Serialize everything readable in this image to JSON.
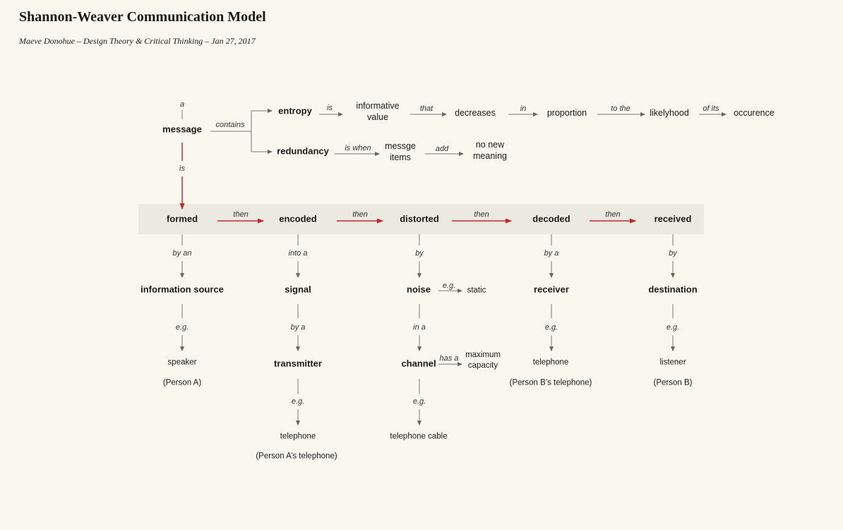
{
  "header": {
    "title": "Shannon-Weaver Communication Model",
    "subtitle": "Maeve Donohue – Design Theory & Critical Thinking – Jan 27, 2017"
  },
  "top": {
    "a": "a",
    "message": "message",
    "contains": "contains",
    "is": "is",
    "entropy": "entropy",
    "entropy_is": "is",
    "informative_value": "informative\nvalue",
    "that": "that",
    "decreases": "decreases",
    "in": "in",
    "proportion": "proportion",
    "to_the": "to the",
    "likelyhood": "likelyhood",
    "of_its": "of its",
    "occurence": "occurence",
    "redundancy": "redundancy",
    "is_when": "is when",
    "messge_items": "messge\nitems",
    "add": "add",
    "no_new_meaning": "no new\nmeaning"
  },
  "process": {
    "stages": [
      "formed",
      "encoded",
      "distorted",
      "decoded",
      "received"
    ],
    "then": "then"
  },
  "columns": {
    "formed": {
      "rel1": "by an",
      "node": "information source",
      "rel2": "e.g.",
      "ex1": "speaker",
      "ex2": "(Person A)"
    },
    "encoded": {
      "rel1": "into a",
      "node": "signal",
      "rel2": "by a",
      "node2": "transmitter",
      "rel3": "e.g.",
      "ex1": "telephone",
      "ex2": "(Person A’s telephone)"
    },
    "distorted": {
      "rel1": "by",
      "node": "noise",
      "eg": "e.g.",
      "static": "static",
      "rel2": "in a",
      "node2": "channel",
      "has_a": "has a",
      "max_capacity": "maximum\ncapacity",
      "rel3": "e.g.",
      "ex1": "telephone cable"
    },
    "decoded": {
      "rel1": "by a",
      "node": "receiver",
      "rel2": "e.g.",
      "ex1": "telephone",
      "ex2": "(Person B’s telephone)"
    },
    "received": {
      "rel1": "by",
      "node": "destination",
      "rel2": "e.g.",
      "ex1": "listener",
      "ex2": "(Person B)"
    }
  },
  "colors": {
    "background": "#f9f7ee",
    "band": "#ece9e0",
    "accent_arrow": "#c0282a",
    "connector": "#777777"
  }
}
